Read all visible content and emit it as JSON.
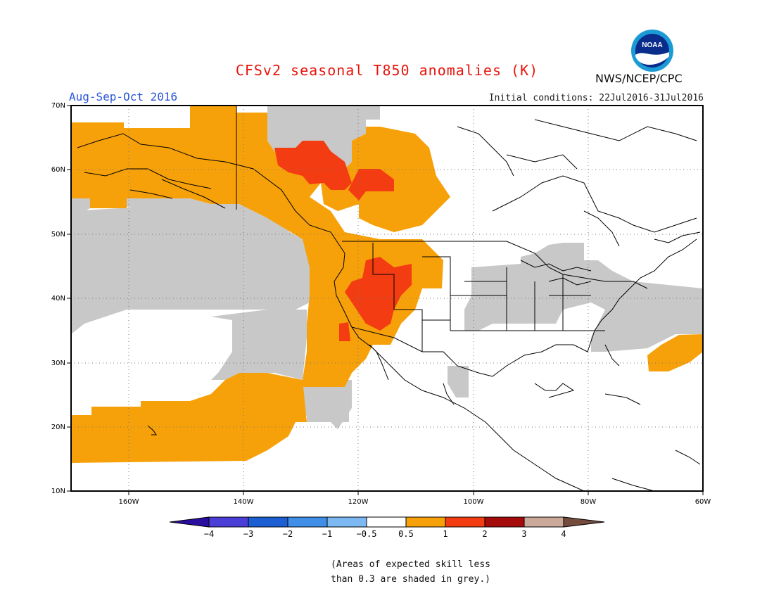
{
  "title": "CFSv2 seasonal T850 anomalies (K)",
  "period": "Aug-Sep-Oct 2016",
  "initial_conditions": "Initial conditions: 22Jul2016-31Jul2016",
  "agency": "NWS/NCEP/CPC",
  "logo_text": "NOAA",
  "latitude_labels": [
    "70N",
    "60N",
    "50N",
    "40N",
    "30N",
    "20N",
    "10N"
  ],
  "longitude_labels": [
    "160W",
    "140W",
    "120W",
    "100W",
    "80W",
    "60W"
  ],
  "colorbar": {
    "labels": [
      "−4",
      "−3",
      "−2",
      "−1",
      "−0.5",
      "0.5",
      "1",
      "2",
      "3",
      "4"
    ],
    "colors": [
      "#2a0ea0",
      "#4b3ed6",
      "#1c5fd2",
      "#3f8fe8",
      "#7cb8f2",
      "#ffffff",
      "#f7a10a",
      "#f43c12",
      "#a60b0b",
      "#caa89a",
      "#744c3e"
    ]
  },
  "note_line1": "(Areas of expected skill less",
  "note_line2": "than 0.3 are shaded in grey.)",
  "colors": {
    "anom_0_5_1": "#f7a10a",
    "anom_1_2": "#f43c12",
    "low_skill": "#c8c8c8",
    "title": "#e8140c",
    "period": "#2a55d8"
  }
}
